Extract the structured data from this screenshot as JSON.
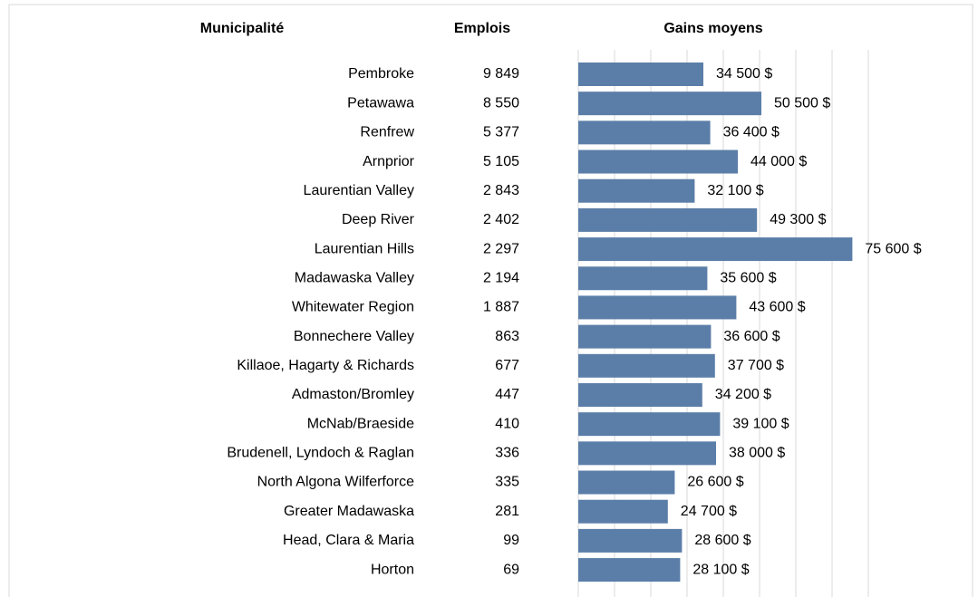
{
  "chart_data": {
    "type": "bar",
    "orientation": "horizontal",
    "headers": [
      "Municipalité",
      "Emplois",
      "Gains moyens"
    ],
    "categories": [
      "Pembroke",
      "Petawawa",
      "Renfrew",
      "Arnprior",
      "Laurentian Valley",
      "Deep River",
      "Laurentian Hills",
      "Madawaska Valley",
      "Whitewater Region",
      "Bonnechere Valley",
      "Killaoe, Hagarty & Richards",
      "Admaston/Bromley",
      "McNab/Braeside",
      "Brudenell, Lyndoch & Raglan",
      "North Algona Wilferforce",
      "Greater Madawaska",
      "Head, Clara & Maria",
      "Horton"
    ],
    "jobs": [
      "9 849",
      "8 550",
      "5 377",
      "5 105",
      "2 843",
      "2 402",
      "2 297",
      "2 194",
      "1 887",
      "863",
      "677",
      "447",
      "410",
      "336",
      "335",
      "281",
      "99",
      "69"
    ],
    "values": [
      34500,
      50500,
      36400,
      44000,
      32100,
      49300,
      75600,
      35600,
      43600,
      36600,
      37700,
      34200,
      39100,
      38000,
      26600,
      24700,
      28600,
      28100
    ],
    "value_labels": [
      "34 500 $",
      "50 500 $",
      "36 400 $",
      "44 000 $",
      "32 100 $",
      "49 300 $",
      "75 600 $",
      "35 600 $",
      "43 600 $",
      "36 600 $",
      "37 700 $",
      "34 200 $",
      "39 100 $",
      "38 000 $",
      "26 600 $",
      "24 700 $",
      "28 600 $",
      "28 100 $"
    ],
    "color": "#5b7ea8",
    "xlim": [
      0,
      80000
    ],
    "xticks": [
      0,
      10000,
      20000,
      30000,
      40000,
      50000,
      60000,
      70000,
      80000
    ],
    "grid": true
  }
}
